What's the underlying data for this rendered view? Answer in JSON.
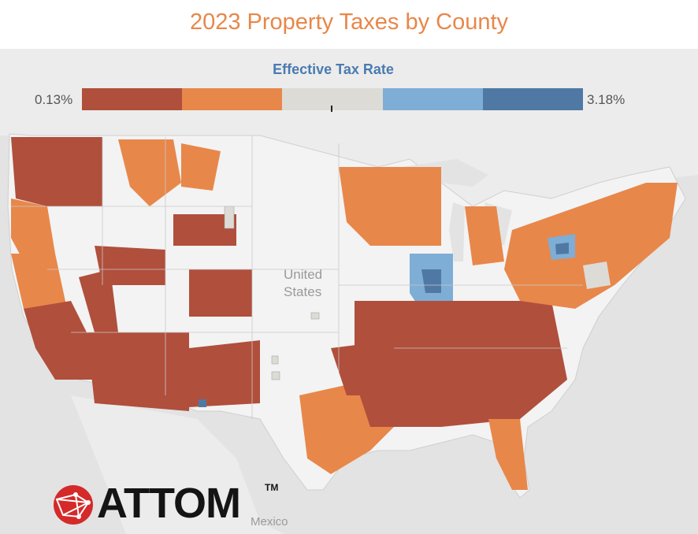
{
  "title": "2023 Property Taxes by County",
  "legend": {
    "title": "Effective Tax Rate",
    "min_label": "0.13%",
    "max_label": "3.18%",
    "colors": [
      "#b04f3c",
      "#e8874a",
      "#dddbd6",
      "#7eadd6",
      "#4f79a4"
    ]
  },
  "map_labels": {
    "country_line1": "United",
    "country_line2": "States",
    "neighbor": "Mexico"
  },
  "logo": {
    "brand_text": "ATTOM",
    "trademark": "TM"
  },
  "colors": {
    "low": "#b04f3c",
    "mid_low": "#e8874a",
    "middle": "#dddbd6",
    "mid_high": "#7eadd6",
    "high": "#4f79a4",
    "land": "#efefef",
    "background": "#e3e3e3"
  }
}
